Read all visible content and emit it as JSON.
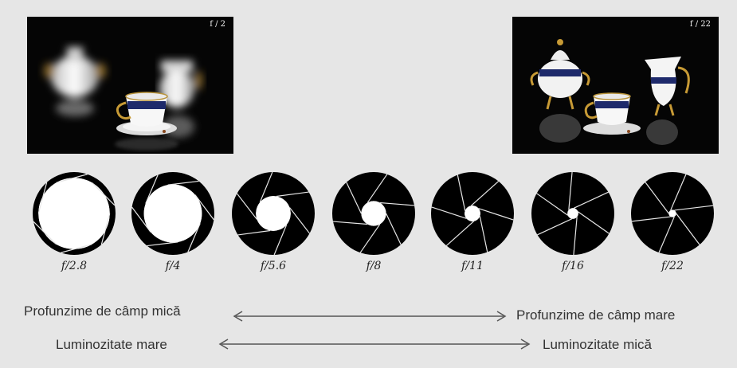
{
  "photos": {
    "left_label": "f / 2",
    "right_label": "f / 22"
  },
  "apertures": [
    {
      "label": "f/2.8",
      "opening": 0.86
    },
    {
      "label": "f/4",
      "opening": 0.7
    },
    {
      "label": "f/5.6",
      "opening": 0.42
    },
    {
      "label": "f/8",
      "opening": 0.3
    },
    {
      "label": "f/11",
      "opening": 0.19
    },
    {
      "label": "f/16",
      "opening": 0.13
    },
    {
      "label": "f/22",
      "opening": 0.09
    }
  ],
  "captions": {
    "dof_small": "Profunzime de câmp mică",
    "dof_large": "Profunzime de câmp mare",
    "light_large": "Luminozitate mare",
    "light_small": "Luminozitate mică"
  },
  "colors": {
    "background": "#e6e6e6",
    "blades": "#000000",
    "arrow": "#555555"
  }
}
